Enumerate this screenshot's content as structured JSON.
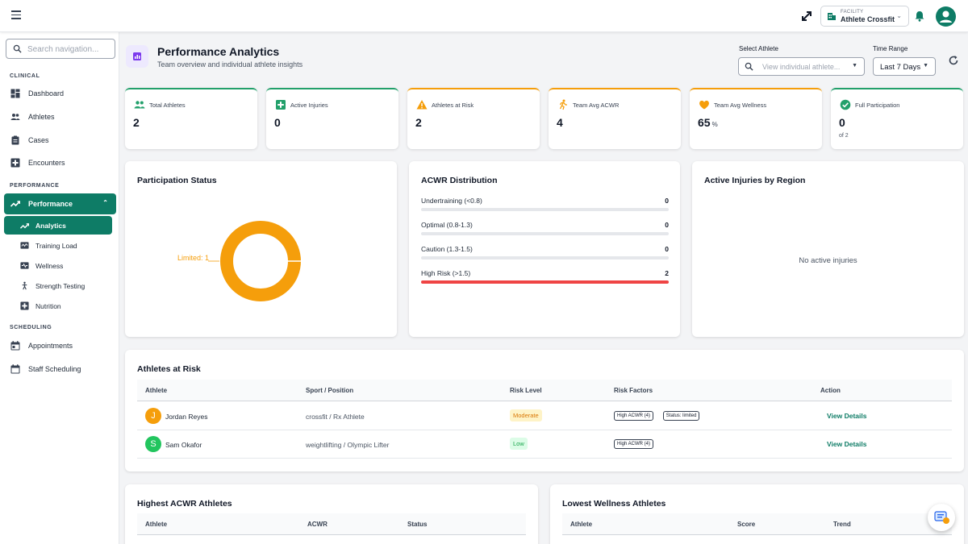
{
  "topbar": {
    "facility_label": "FACILITY",
    "facility_name": "Athlete Crossfit"
  },
  "sidebar": {
    "search_placeholder": "Search navigation...",
    "sections": {
      "clinical": "CLINICAL",
      "performance": "PERFORMANCE",
      "scheduling": "SCHEDULING"
    },
    "items": {
      "dashboard": "Dashboard",
      "athletes": "Athletes",
      "cases": "Cases",
      "encounters": "Encounters",
      "performance": "Performance",
      "analytics": "Analytics",
      "training_load": "Training Load",
      "wellness": "Wellness",
      "strength_testing": "Strength Testing",
      "nutrition": "Nutrition",
      "appointments": "Appointments",
      "staff_scheduling": "Staff Scheduling"
    }
  },
  "header": {
    "title": "Performance Analytics",
    "subtitle": "Team overview and individual athlete insights",
    "select_athlete_label": "Select Athlete",
    "select_athlete_placeholder": "View individual athlete...",
    "time_range_label": "Time Range",
    "time_range_value": "Last 7 Days"
  },
  "stats": {
    "total_athletes": {
      "label": "Total Athletes",
      "value": "2"
    },
    "active_injuries": {
      "label": "Active Injuries",
      "value": "0"
    },
    "athletes_at_risk": {
      "label": "Athletes at Risk",
      "value": "2"
    },
    "team_avg_acwr": {
      "label": "Team Avg ACWR",
      "value": "4"
    },
    "team_avg_wellness": {
      "label": "Team Avg Wellness",
      "value": "65",
      "unit": "%"
    },
    "full_participation": {
      "label": "Full Participation",
      "value": "0",
      "sub": "of 2"
    }
  },
  "participation": {
    "title": "Participation Status",
    "slice_label": "Limited: 1",
    "slices": [
      {
        "name": "Limited",
        "value": 1,
        "color": "#f59e0b"
      }
    ]
  },
  "acwr": {
    "title": "ACWR Distribution",
    "max": 2,
    "rows": [
      {
        "label": "Undertraining (<0.8)",
        "count": "0",
        "value": 0
      },
      {
        "label": "Optimal (0.8-1.3)",
        "count": "0",
        "value": 0
      },
      {
        "label": "Caution (1.3-1.5)",
        "count": "0",
        "value": 0
      },
      {
        "label": "High Risk (>1.5)",
        "count": "2",
        "value": 2
      }
    ]
  },
  "injuries": {
    "title": "Active Injuries by Region",
    "empty": "No active injuries"
  },
  "risk_table": {
    "title": "Athletes at Risk",
    "columns": {
      "athlete": "Athlete",
      "sport": "Sport / Position",
      "risk": "Risk Level",
      "factors": "Risk Factors",
      "action": "Action"
    },
    "rows": [
      {
        "initial": "J",
        "avatar_color": "#f59e0b",
        "name": "Jordan Reyes",
        "sport": "crossfit / Rx Athlete",
        "risk": "Moderate",
        "factors": [
          "High ACWR (4)",
          "Status: limited"
        ],
        "action": "View Details"
      },
      {
        "initial": "S",
        "avatar_color": "#22c55e",
        "name": "Sam Okafor",
        "sport": "weightlifting / Olympic Lifter",
        "risk": "Low",
        "factors": [
          "High ACWR (4)"
        ],
        "action": "View Details"
      }
    ]
  },
  "highest_acwr": {
    "title": "Highest ACWR Athletes",
    "columns": {
      "athlete": "Athlete",
      "acwr": "ACWR",
      "status": "Status"
    }
  },
  "lowest_wellness": {
    "title": "Lowest Wellness Athletes",
    "columns": {
      "athlete": "Athlete",
      "score": "Score",
      "trend": "Trend"
    }
  }
}
